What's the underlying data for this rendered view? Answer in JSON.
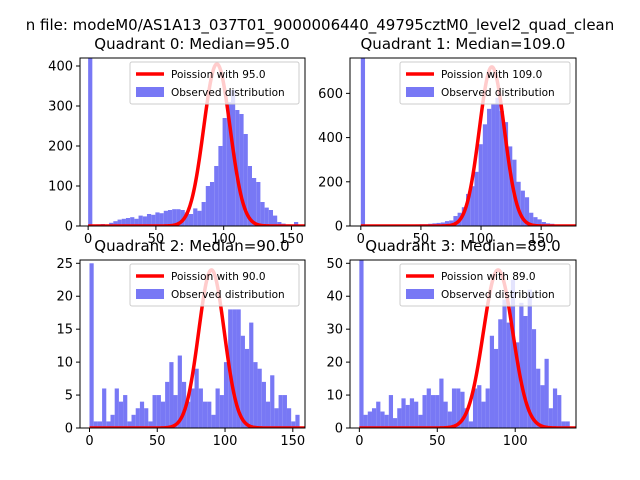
{
  "figure": {
    "suptitle": "n file: modeM0/AS1A13_037T01_9000006440_49795cztM0_level2_quad_clean"
  },
  "colors": {
    "hist": "#7878f5",
    "poisson": "#ff0000",
    "axis": "#000000",
    "legend_border": "#cccccc"
  },
  "legend_labels": {
    "poisson_prefix": "Poission with ",
    "observed": "Observed distribution"
  },
  "chart_data": [
    {
      "type": "bar",
      "title": "Quadrant 0: Median=95.0",
      "legend_poisson": "Poission with 95.0",
      "legend_observed": "Observed distribution",
      "legend_position": "top-right",
      "mean": 95.0,
      "xlim": [
        -6,
        160
      ],
      "ylim": [
        0,
        420
      ],
      "xticks": [
        0,
        50,
        100,
        150
      ],
      "yticks": [
        0,
        100,
        200,
        300,
        400
      ],
      "bin_start": 0,
      "bin_width": 3.1,
      "counts": [
        420,
        2,
        4,
        5,
        3,
        8,
        12,
        16,
        18,
        20,
        22,
        18,
        26,
        24,
        30,
        28,
        34,
        32,
        38,
        40,
        42,
        42,
        40,
        34,
        30,
        44,
        38,
        60,
        100,
        110,
        150,
        200,
        270,
        310,
        340,
        290,
        280,
        230,
        150,
        120,
        110,
        60,
        46,
        40,
        26,
        10,
        6,
        4,
        3,
        10
      ],
      "poisson_peak": 405
    },
    {
      "type": "bar",
      "title": "Quadrant 1: Median=109.0",
      "legend_poisson": "Poission with 109.0",
      "legend_observed": "Observed distribution",
      "legend_position": "top-right",
      "mean": 109.0,
      "xlim": [
        -9,
        179
      ],
      "ylim": [
        0,
        760
      ],
      "xticks": [
        0,
        50,
        100,
        150
      ],
      "yticks": [
        0,
        200,
        400,
        600
      ],
      "bin_start": 0,
      "bin_width": 3.5,
      "counts": [
        760,
        3,
        4,
        2,
        3,
        5,
        3,
        4,
        6,
        5,
        4,
        6,
        5,
        7,
        8,
        8,
        10,
        12,
        14,
        16,
        22,
        25,
        45,
        60,
        85,
        145,
        180,
        245,
        370,
        460,
        530,
        550,
        580,
        520,
        470,
        360,
        300,
        200,
        160,
        130,
        60,
        40,
        30,
        18,
        12,
        10,
        6,
        4,
        3,
        2
      ],
      "poisson_peak": 720
    },
    {
      "type": "bar",
      "title": "Quadrant 2: Median=90.0",
      "legend_poisson": "Poission with 90.0",
      "legend_observed": "Observed distribution",
      "legend_position": "top-right",
      "mean": 90.0,
      "xlim": [
        -7,
        159
      ],
      "ylim": [
        0,
        25.5
      ],
      "xticks": [
        0,
        50,
        100,
        150
      ],
      "yticks": [
        0,
        5,
        10,
        15,
        20,
        25
      ],
      "bin_start": 0,
      "bin_width": 3.1,
      "counts": [
        25,
        1,
        1,
        6,
        1,
        2,
        6,
        4,
        5,
        1,
        2,
        3,
        4,
        3,
        1,
        5,
        5,
        4,
        7,
        10,
        5,
        11,
        7,
        4,
        6,
        9,
        6,
        4,
        4,
        2,
        6,
        5,
        10,
        18,
        18,
        18,
        14,
        12,
        16,
        10,
        9,
        7,
        4,
        8,
        3,
        5,
        5,
        3,
        1,
        2
      ],
      "poisson_peak": 24
    },
    {
      "type": "bar",
      "title": "Quadrant 3: Median=89.0",
      "legend_poisson": "Poission with 89.0",
      "legend_observed": "Observed distribution",
      "legend_position": "top-right",
      "mean": 89.0,
      "xlim": [
        -6,
        139
      ],
      "ylim": [
        0,
        51
      ],
      "xticks": [
        0,
        50,
        100
      ],
      "yticks": [
        0,
        10,
        20,
        30,
        40,
        50
      ],
      "bin_start": 0,
      "bin_width": 2.7,
      "counts": [
        51,
        4,
        5,
        6,
        8,
        5,
        4,
        10,
        3,
        6,
        9,
        7,
        9,
        8,
        4,
        10,
        12,
        10,
        10,
        15,
        8,
        5,
        12,
        12,
        11,
        6,
        2,
        12,
        13,
        8,
        12,
        28,
        24,
        33,
        39,
        32,
        45,
        26,
        38,
        34,
        42,
        30,
        18,
        13,
        21,
        6,
        12,
        10,
        2,
        2
      ],
      "poisson_peak": 48
    }
  ]
}
